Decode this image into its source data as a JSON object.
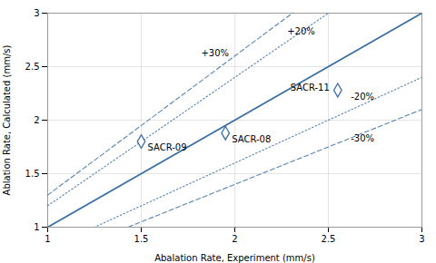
{
  "chart_data": {
    "type": "scatter",
    "x": [
      1.5,
      1.95,
      2.55
    ],
    "values": [
      1.8,
      1.88,
      2.28
    ],
    "labels": [
      "SACR-09",
      "SACR-08",
      "SACR-11"
    ],
    "marker": "diamond",
    "color": "#3A6EA5",
    "lines": [
      {
        "slope": 1.3,
        "line_style": "dashed"
      },
      {
        "slope": 0.7,
        "line_style": "dashed"
      },
      {
        "slope": 1.2,
        "line_style": "dotted"
      },
      {
        "slope": 0.8,
        "line_style": "dotted"
      },
      {
        "slope": 1.0,
        "intercept": 0.0,
        "line_style": "solid"
      }
    ],
    "annotations": [
      {
        "text": "+30%",
        "x": 1.82,
        "y": 2.6
      },
      {
        "text": "+20%",
        "x": 2.28,
        "y": 2.8
      },
      {
        "text": "-20%",
        "x": 2.62,
        "y": 2.19
      },
      {
        "text": "-30%",
        "x": 2.62,
        "y": 1.8
      }
    ],
    "xlabel": "Abalation Rate, Experiment (mm/s)",
    "ylabel": "Ablation Rate, Calculated (mm/s)",
    "xlim": [
      1.0,
      3.0
    ],
    "ylim": [
      1.0,
      3.0
    ],
    "xticks": [
      1,
      1.5,
      2,
      2.5,
      3
    ],
    "yticks": [
      1,
      1.5,
      2,
      2.5,
      3
    ],
    "grid": true
  }
}
